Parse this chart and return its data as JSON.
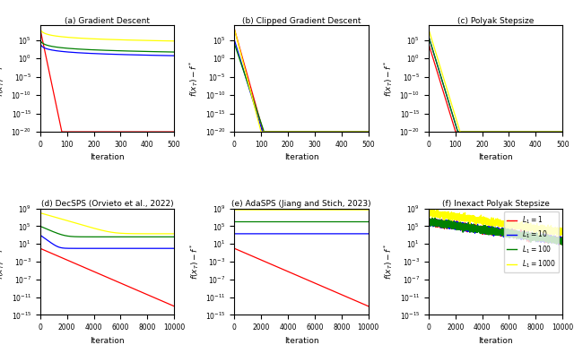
{
  "colors": [
    "#ff0000",
    "#0000ff",
    "#008000",
    "#ffff00"
  ],
  "legend_labels": [
    "$L_1 = 1$",
    "$L_1 = 10$",
    "$L_1 = 100$",
    "$L_1 = 1000$"
  ],
  "subplot_titles": [
    "(a) Gradient Descent",
    "(b) Clipped Gradient Descent",
    "(c) Polyak Stepsize",
    "(d) DecSPS (Orvieto et al., 2022)",
    "(e) AdaSPS (Jiang and Stich, 2023)",
    "(f) Inexact Polyak Stepsize"
  ],
  "ylabel": "$f(x_T) - f^*$",
  "xlabel": "Iteration",
  "figsize": [
    6.4,
    4.04
  ],
  "dpi": 100
}
